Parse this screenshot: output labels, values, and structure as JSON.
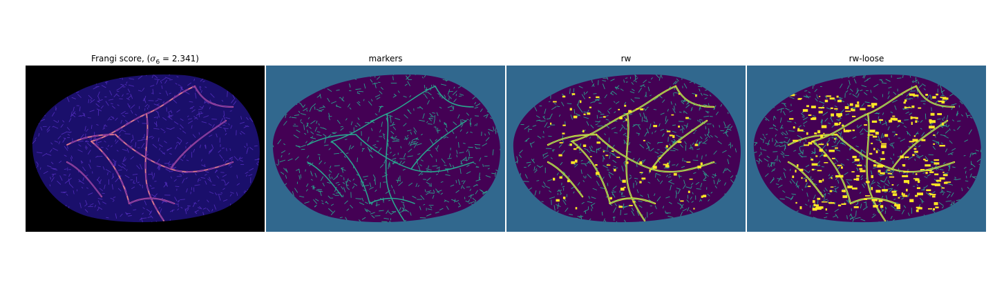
{
  "panels": [
    {
      "title_prefix": "Frangi score, (",
      "title_symbol": "σ",
      "title_subscript": "6",
      "title_suffix": " = 2.341)",
      "colormap": "magma",
      "colors": {
        "background": "#000000",
        "body": "#1a0f6b",
        "vessel": "#4d2bb5",
        "highlight": "#c2508f",
        "peak": "#ffb27a"
      }
    },
    {
      "title": "markers",
      "colormap": "viridis",
      "colors": {
        "background": "#31688e",
        "body": "#440154",
        "vessel": "#2aa58e"
      }
    },
    {
      "title": "rw",
      "colormap": "viridis",
      "colors": {
        "background": "#31688e",
        "body": "#440154",
        "vessel": "#2aa58e",
        "highlight": "#fde725"
      }
    },
    {
      "title": "rw-loose",
      "colormap": "viridis",
      "colors": {
        "background": "#31688e",
        "body": "#440154",
        "vessel": "#2aa58e",
        "highlight": "#fde725"
      }
    }
  ]
}
